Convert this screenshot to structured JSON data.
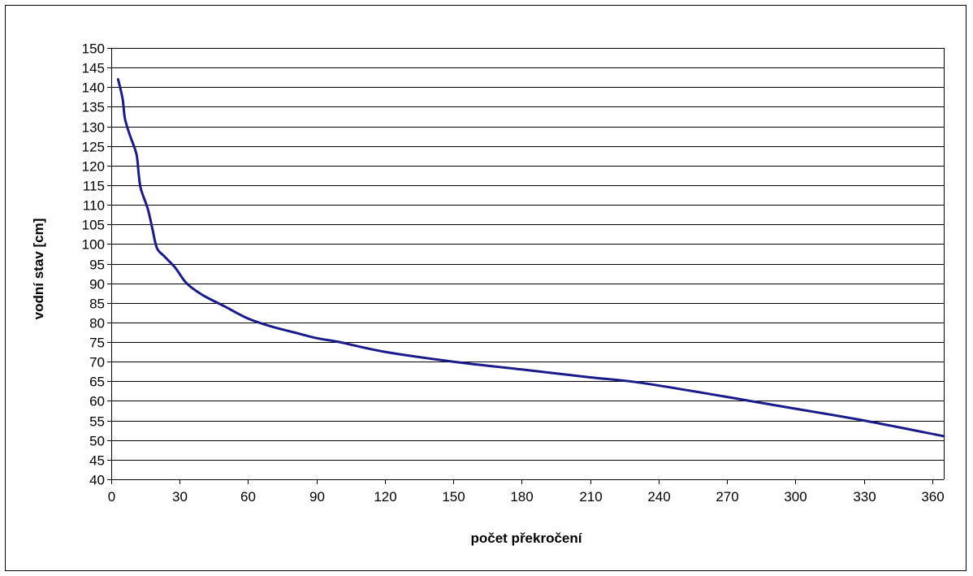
{
  "chart_data": {
    "type": "line",
    "title": "",
    "xlabel": "počet překročení",
    "ylabel": "vodní stav  [cm]",
    "xlim": [
      0,
      365
    ],
    "ylim": [
      40,
      150
    ],
    "xticks": [
      0,
      30,
      60,
      90,
      120,
      150,
      180,
      210,
      240,
      270,
      300,
      330,
      360
    ],
    "yticks": [
      40,
      45,
      50,
      55,
      60,
      65,
      70,
      75,
      80,
      85,
      90,
      95,
      100,
      105,
      110,
      115,
      120,
      125,
      130,
      135,
      140,
      145,
      150
    ],
    "grid": "horizontal",
    "legend": "none",
    "line_color": "#1a1a8c",
    "series": [
      {
        "x": [
          3,
          5,
          6,
          8,
          11,
          12,
          13,
          16,
          18,
          20,
          23,
          28,
          33,
          40,
          50,
          60,
          70,
          80,
          90,
          100,
          120,
          150,
          180,
          210,
          230,
          260,
          280,
          300,
          330,
          365
        ],
        "values": [
          142,
          137,
          132,
          128,
          123,
          118,
          114,
          109,
          104,
          99,
          97,
          94,
          90,
          87,
          84,
          81,
          79,
          77.5,
          76,
          75,
          72.5,
          70,
          68,
          66,
          64.8,
          62,
          60,
          58,
          55,
          51
        ]
      }
    ]
  }
}
